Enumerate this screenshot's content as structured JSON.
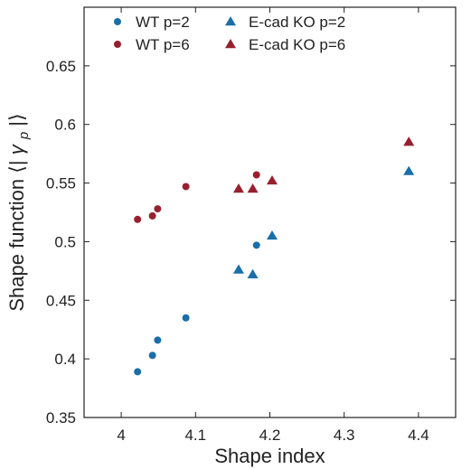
{
  "chart_data": {
    "type": "scatter",
    "title": "",
    "xlabel": "Shape index",
    "ylabel_main": "Shape function",
    "ylabel_symbol": "γ",
    "ylabel_subscript": "p",
    "xlim": [
      3.95,
      4.45
    ],
    "ylim": [
      0.35,
      0.7
    ],
    "xticks": [
      4,
      4.1,
      4.2,
      4.3,
      4.4
    ],
    "yticks": [
      0.35,
      0.4,
      0.45,
      0.5,
      0.55,
      0.6,
      0.65
    ],
    "xtick_labels": [
      "4",
      "4.1",
      "4.2",
      "4.3",
      "4.4"
    ],
    "ytick_labels": [
      "0.35",
      "0.4",
      "0.45",
      "0.5",
      "0.55",
      "0.6",
      "0.65"
    ],
    "grid": false,
    "legend_position": "top",
    "series": [
      {
        "name": "WT p=2",
        "marker": "circle",
        "color": "#1a6fa8",
        "points": [
          [
            4.022,
            0.389
          ],
          [
            4.042,
            0.403
          ],
          [
            4.049,
            0.416
          ],
          [
            4.087,
            0.435
          ],
          [
            4.182,
            0.497
          ]
        ]
      },
      {
        "name": "WT p=6",
        "marker": "circle",
        "color": "#98202e",
        "points": [
          [
            4.022,
            0.519
          ],
          [
            4.042,
            0.522
          ],
          [
            4.049,
            0.528
          ],
          [
            4.087,
            0.547
          ],
          [
            4.182,
            0.557
          ]
        ]
      },
      {
        "name": "E-cad KO p=2",
        "marker": "triangle",
        "color": "#1a6fa8",
        "points": [
          [
            4.158,
            0.476
          ],
          [
            4.177,
            0.472
          ],
          [
            4.203,
            0.505
          ],
          [
            4.387,
            0.56
          ]
        ]
      },
      {
        "name": "E-cad KO p=6",
        "marker": "triangle",
        "color": "#98202e",
        "points": [
          [
            4.158,
            0.545
          ],
          [
            4.177,
            0.545
          ],
          [
            4.203,
            0.552
          ],
          [
            4.387,
            0.585
          ]
        ]
      }
    ]
  }
}
